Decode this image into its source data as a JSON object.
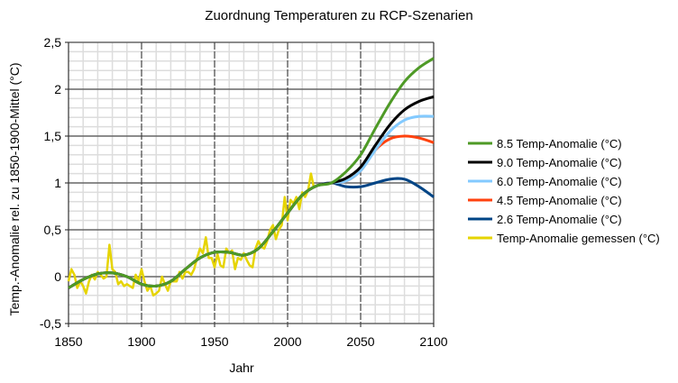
{
  "chart_data": {
    "type": "line",
    "title": "Zuordnung Temperaturen zu RCP-Szenarien",
    "xlabel": "Jahr",
    "ylabel": "Temp.-Anomalie rel. zu 1850-1900-Mittel (°C)",
    "xlim": [
      1850,
      2100
    ],
    "ylim": [
      -0.5,
      2.5
    ],
    "xticks": [
      "1850",
      "1900",
      "1950",
      "2000",
      "2050",
      "2100"
    ],
    "yticks": [
      "-0,5",
      "0",
      "0,5",
      "1",
      "1,5",
      "2",
      "2,5"
    ],
    "grid": true,
    "legend_position": "right",
    "shared_history": {
      "x": [
        1850,
        1860,
        1870,
        1880,
        1890,
        1900,
        1910,
        1920,
        1930,
        1940,
        1950,
        1960,
        1970,
        1980,
        1990,
        2000,
        2010,
        2020,
        2030
      ],
      "y": [
        -0.12,
        -0.03,
        0.03,
        0.04,
        0.0,
        -0.08,
        -0.1,
        -0.05,
        0.08,
        0.2,
        0.26,
        0.26,
        0.23,
        0.3,
        0.48,
        0.68,
        0.87,
        0.97,
        1.0
      ]
    },
    "series": [
      {
        "name": "8.5 Temp-Anomalie (°C)",
        "color": "#4e9a26",
        "x": [
          2030,
          2040,
          2050,
          2060,
          2070,
          2080,
          2090,
          2100
        ],
        "y": [
          1.03,
          1.12,
          1.3,
          1.58,
          1.85,
          2.08,
          2.23,
          2.33
        ]
      },
      {
        "name": "9.0 Temp-Anomalie (°C)",
        "color": "#000000",
        "x": [
          2030,
          2040,
          2050,
          2060,
          2070,
          2080,
          2090,
          2100
        ],
        "y": [
          1.0,
          1.05,
          1.17,
          1.4,
          1.62,
          1.78,
          1.87,
          1.92
        ]
      },
      {
        "name": "6.0 Temp-Anomalie (°C)",
        "color": "#83caff",
        "x": [
          2030,
          2040,
          2050,
          2060,
          2070,
          2080,
          2090,
          2100
        ],
        "y": [
          0.99,
          1.02,
          1.13,
          1.35,
          1.55,
          1.67,
          1.71,
          1.71
        ]
      },
      {
        "name": "4.5 Temp-Anomalie (°C)",
        "color": "#ff420e",
        "x": [
          2030,
          2040,
          2050,
          2060,
          2070,
          2080,
          2090,
          2100
        ],
        "y": [
          0.99,
          1.02,
          1.13,
          1.35,
          1.47,
          1.5,
          1.48,
          1.43
        ]
      },
      {
        "name": "2.6 Temp-Anomalie (°C)",
        "color": "#004586",
        "x": [
          2030,
          2040,
          2050,
          2060,
          2070,
          2080,
          2090,
          2100
        ],
        "y": [
          0.98,
          0.96,
          0.96,
          1.0,
          1.04,
          1.04,
          0.96,
          0.85
        ]
      },
      {
        "name": "Temp-Anomalie gemessen (°C)",
        "color": "#e6d400",
        "x": [
          1850,
          1852,
          1854,
          1856,
          1858,
          1860,
          1862,
          1864,
          1866,
          1868,
          1870,
          1872,
          1874,
          1876,
          1878,
          1880,
          1882,
          1884,
          1886,
          1888,
          1890,
          1892,
          1894,
          1896,
          1898,
          1900,
          1902,
          1904,
          1906,
          1908,
          1910,
          1912,
          1914,
          1916,
          1918,
          1920,
          1922,
          1924,
          1926,
          1928,
          1930,
          1932,
          1934,
          1936,
          1938,
          1940,
          1942,
          1944,
          1946,
          1948,
          1950,
          1952,
          1954,
          1956,
          1958,
          1960,
          1962,
          1964,
          1966,
          1968,
          1970,
          1972,
          1974,
          1976,
          1978,
          1980,
          1982,
          1984,
          1986,
          1988,
          1990,
          1992,
          1994,
          1996,
          1998,
          2000,
          2002,
          2004,
          2006,
          2008,
          2010,
          2012,
          2014,
          2016,
          2018
        ],
        "y": [
          -0.05,
          0.08,
          0.02,
          -0.12,
          -0.05,
          -0.1,
          -0.18,
          -0.05,
          0.02,
          -0.03,
          0.05,
          0.02,
          -0.02,
          0.0,
          0.34,
          0.08,
          0.05,
          -0.08,
          -0.05,
          -0.1,
          -0.08,
          -0.1,
          -0.12,
          0.02,
          -0.05,
          0.08,
          -0.05,
          -0.15,
          -0.1,
          -0.2,
          -0.18,
          -0.15,
          0.0,
          -0.08,
          -0.15,
          -0.05,
          -0.05,
          -0.05,
          0.05,
          -0.02,
          0.05,
          0.05,
          0.02,
          0.08,
          0.2,
          0.3,
          0.25,
          0.42,
          0.2,
          0.2,
          0.1,
          0.24,
          0.12,
          0.1,
          0.3,
          0.25,
          0.28,
          0.08,
          0.2,
          0.18,
          0.25,
          0.18,
          0.12,
          0.1,
          0.3,
          0.38,
          0.32,
          0.3,
          0.38,
          0.5,
          0.55,
          0.4,
          0.5,
          0.55,
          0.85,
          0.6,
          0.82,
          0.78,
          0.85,
          0.72,
          0.9,
          0.85,
          0.92,
          1.1,
          0.95
        ]
      }
    ]
  }
}
